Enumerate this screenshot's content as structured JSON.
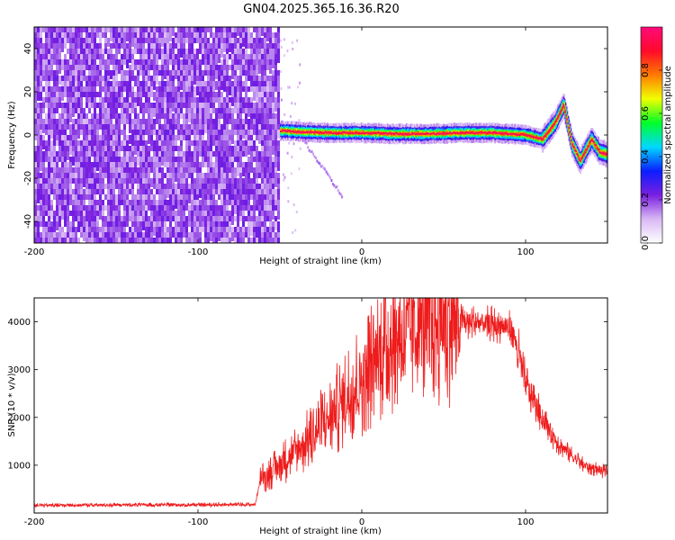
{
  "title": "GN04.2025.365.16.36.R20",
  "chart_data": [
    {
      "type": "heatmap",
      "xlabel": "Height of straight line (km)",
      "ylabel": "Frequency (Hz)",
      "xlim": [
        -200,
        150
      ],
      "ylim": [
        -50,
        50
      ],
      "xticks": [
        -200,
        -100,
        0,
        100
      ],
      "yticks": [
        -40,
        -20,
        0,
        20,
        40
      ],
      "colorbar": {
        "label": "Normalized spectral amplitude",
        "range": [
          0,
          1
        ],
        "ticks": [
          0.0,
          0.2,
          0.4,
          0.6,
          0.8
        ],
        "colors": [
          "#ffffff",
          "#d8b8f4",
          "#7a1fe0",
          "#0a1eff",
          "#00d8ff",
          "#00ff2a",
          "#f0ff00",
          "#ff7a00",
          "#ff0a2a",
          "#ff0a7a"
        ]
      },
      "noise_region_km": [
        -200,
        -50
      ],
      "ridge_km": [
        -50,
        -40,
        -20,
        0,
        20,
        40,
        60,
        80,
        100,
        110,
        118,
        123,
        128,
        133,
        140,
        145,
        150
      ],
      "ridge_hz": [
        2,
        1.5,
        1,
        1,
        0.5,
        0.5,
        1,
        1,
        0,
        -2,
        6,
        14,
        -4,
        -12,
        -2,
        -8,
        -9
      ]
    },
    {
      "type": "line",
      "xlabel": "Height of straight line (km)",
      "ylabel": "SNR (10 * v/v)",
      "xlim": [
        -200,
        150
      ],
      "ylim": [
        0,
        4500
      ],
      "xticks": [
        -200,
        -100,
        0,
        100
      ],
      "yticks": [
        1000,
        2000,
        3000,
        4000
      ],
      "color": "#ee1c1c",
      "x": [
        -200,
        -150,
        -100,
        -65,
        -62,
        -50,
        -30,
        -10,
        10,
        20,
        40,
        60,
        80,
        92,
        100,
        110,
        120,
        135,
        150
      ],
      "y": [
        160,
        170,
        170,
        180,
        700,
        1000,
        1600,
        2400,
        3300,
        3700,
        3950,
        4000,
        3950,
        3850,
        2700,
        2000,
        1450,
        1000,
        850
      ]
    }
  ]
}
